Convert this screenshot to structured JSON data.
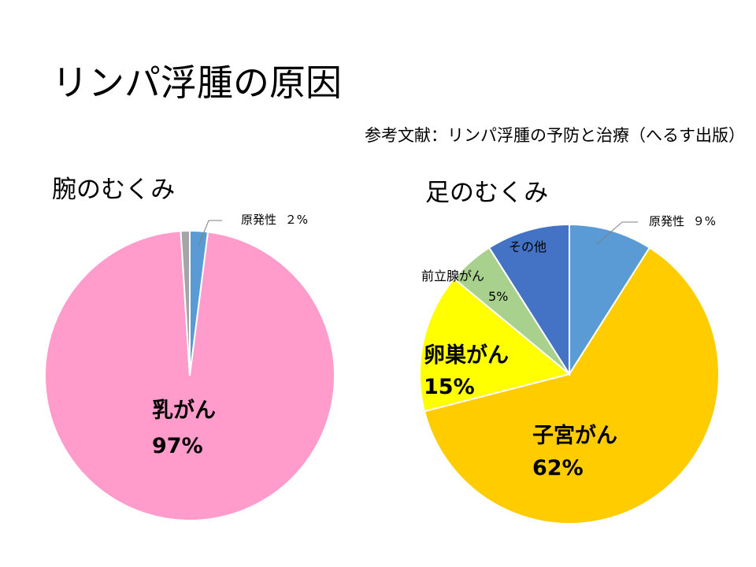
{
  "slide": {
    "title": "リンパ浮腫の原因",
    "reference": "参考文献：リンパ浮腫の予防と治療（へるす出版）"
  },
  "chart_data": [
    {
      "type": "pie",
      "title": "腕のむくみ",
      "start_angle_deg": 0,
      "direction": "clockwise",
      "slices": [
        {
          "label": "原発性",
          "value": 2,
          "value_label": "２%",
          "color": "#5b9bd5"
        },
        {
          "label": "乳がん",
          "value": 97,
          "value_label": "97%",
          "color": "#ff9ccc"
        },
        {
          "label": "",
          "value": 1,
          "value_label": "",
          "color": "#a5a5a5"
        }
      ]
    },
    {
      "type": "pie",
      "title": "足のむくみ",
      "start_angle_deg": 0,
      "direction": "clockwise",
      "slices": [
        {
          "label": "原発性",
          "value": 9,
          "value_label": "９%",
          "color": "#5b9bd5"
        },
        {
          "label": "子宮がん",
          "value": 62,
          "value_label": "62%",
          "color": "#ffcc00"
        },
        {
          "label": "卵巣がん",
          "value": 15,
          "value_label": "15%",
          "color": "#ffff00"
        },
        {
          "label": "前立腺がん",
          "value": 5,
          "value_label": "5%",
          "color": "#a9d18e"
        },
        {
          "label": "その他",
          "value": 9,
          "value_label": "",
          "color": "#4472c4"
        }
      ]
    }
  ]
}
